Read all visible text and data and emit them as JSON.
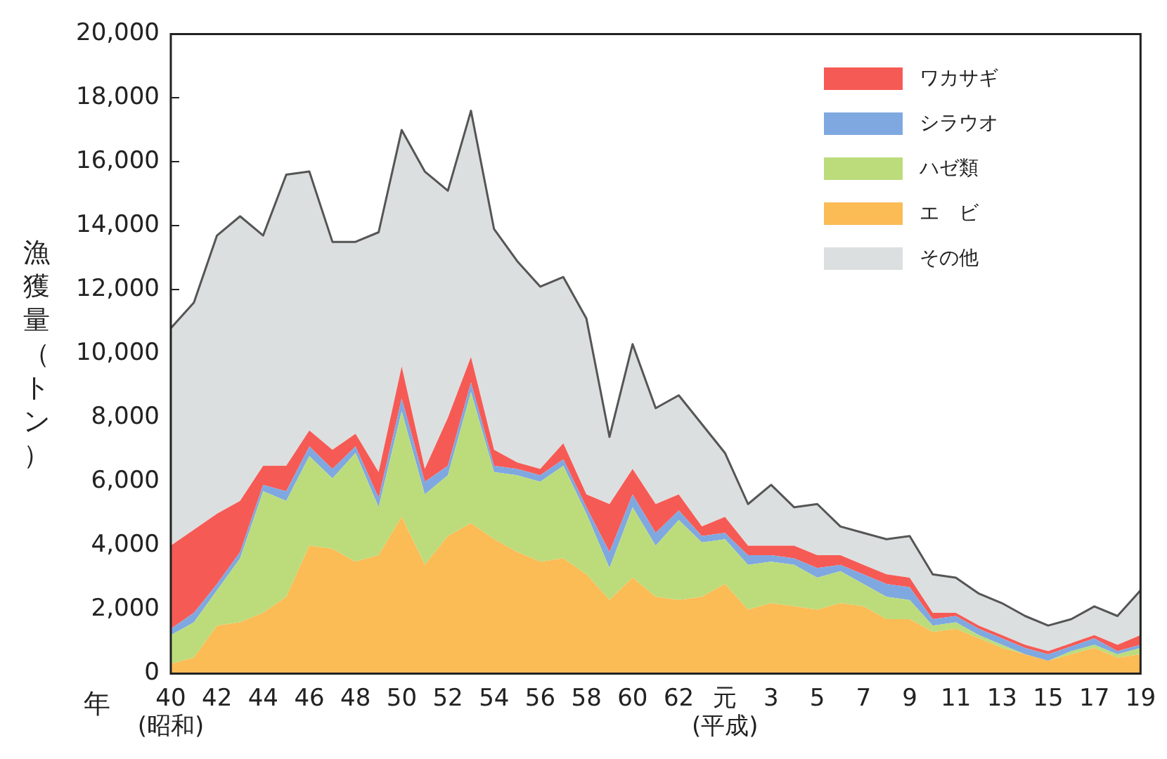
{
  "chart_data": {
    "type": "area",
    "stacked": true,
    "xlabel": "年",
    "ylabel": "漁獲量（トン）",
    "categories": [
      "40\n(昭和)",
      null,
      "42",
      null,
      "44",
      null,
      "46",
      null,
      "48",
      null,
      "50",
      null,
      "52",
      null,
      "54",
      null,
      "56",
      null,
      "58",
      null,
      "60",
      null,
      "62",
      null,
      "元\n(平成)",
      null,
      "3",
      null,
      "5",
      null,
      "7",
      null,
      "9",
      null,
      "11",
      null,
      "13",
      null,
      "15",
      null,
      "17",
      null,
      "19"
    ],
    "series": [
      {
        "name": "エ　ビ",
        "color": "#fbbb55",
        "values": [
          300,
          500,
          1500,
          1600,
          1900,
          2400,
          4000,
          3900,
          3500,
          3700,
          4900,
          3400,
          4300,
          4700,
          4200,
          3800,
          3500,
          3600,
          3100,
          2300,
          3000,
          2400,
          2300,
          2400,
          2800,
          2000,
          2200,
          2100,
          2000,
          2200,
          2100,
          1700,
          1700,
          1300,
          1400,
          1100,
          800,
          600,
          400,
          600,
          800,
          500,
          600
        ]
      },
      {
        "name": "ハゼ類",
        "color": "#bcdc7c",
        "values": [
          900,
          1100,
          1100,
          2000,
          3800,
          3000,
          2800,
          2200,
          3400,
          1500,
          3300,
          2200,
          1900,
          4100,
          2100,
          2400,
          2500,
          2900,
          1900,
          1000,
          2200,
          1600,
          2500,
          1700,
          1400,
          1400,
          1300,
          1300,
          1000,
          1000,
          700,
          700,
          600,
          200,
          200,
          100,
          100,
          0,
          0,
          100,
          100,
          100,
          200
        ]
      },
      {
        "name": "シラウオ",
        "color": "#7fa8e0",
        "values": [
          200,
          300,
          200,
          200,
          200,
          300,
          300,
          300,
          200,
          300,
          400,
          400,
          300,
          300,
          200,
          200,
          200,
          200,
          200,
          500,
          400,
          400,
          300,
          200,
          200,
          300,
          200,
          200,
          300,
          200,
          300,
          400,
          400,
          200,
          200,
          200,
          200,
          200,
          200,
          150,
          200,
          100,
          100
        ]
      },
      {
        "name": "ワカサギ",
        "color": "#f65a55",
        "values": [
          2600,
          2600,
          2200,
          1600,
          600,
          800,
          500,
          600,
          400,
          800,
          1000,
          400,
          1500,
          800,
          500,
          200,
          200,
          500,
          400,
          1500,
          800,
          900,
          500,
          300,
          500,
          300,
          300,
          400,
          400,
          300,
          300,
          300,
          300,
          200,
          100,
          100,
          100,
          100,
          100,
          100,
          100,
          200,
          300
        ]
      },
      {
        "name": "その他",
        "color": "#dcdfdf",
        "values": [
          6800,
          7100,
          8700,
          8900,
          7200,
          9100,
          8100,
          6500,
          6000,
          7500,
          7400,
          9300,
          7100,
          7700,
          6900,
          6300,
          5700,
          5200,
          5500,
          2100,
          3900,
          3000,
          3100,
          3200,
          2000,
          1300,
          1900,
          1200,
          1600,
          900,
          1000,
          1100,
          1300,
          1200,
          1100,
          1000,
          1000,
          900,
          800,
          750,
          900,
          900,
          1400
        ]
      }
    ],
    "ylim": [
      0,
      20000
    ],
    "yticks": [
      0,
      {
        "value": 2000,
        "label": "2,000"
      },
      {
        "value": 4000,
        "label": "4,000"
      },
      {
        "value": 6000,
        "label": "6,000"
      },
      {
        "value": 8000,
        "label": "8,000"
      },
      {
        "value": 10000,
        "label": "10,000"
      },
      {
        "value": 12000,
        "label": "12,000"
      },
      {
        "value": 14000,
        "label": "14,000"
      },
      {
        "value": 16000,
        "label": "16,000"
      },
      {
        "value": 18000,
        "label": "18,000"
      },
      {
        "value": 20000,
        "label": "20,000"
      }
    ],
    "grid": false,
    "legend": "top right"
  }
}
